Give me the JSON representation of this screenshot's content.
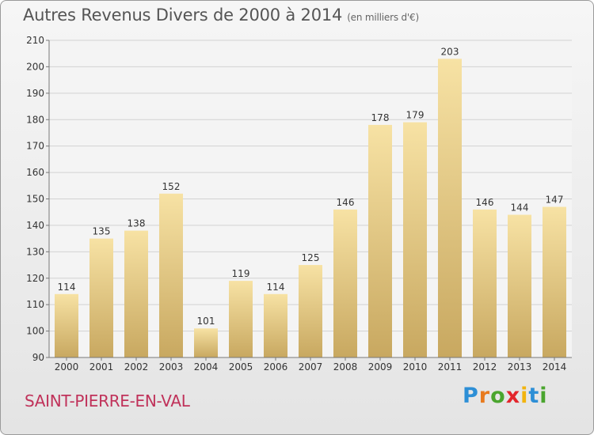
{
  "header": {
    "title": "Autres Revenus Divers de 2000 à 2014",
    "subtitle": "(en milliers d'€)"
  },
  "commune": "SAINT-PIERRE-EN-VAL",
  "logo": {
    "text": "Proxiti",
    "letter_colors": [
      "#2d8fd6",
      "#e87a1e",
      "#4aa52e",
      "#e3262c",
      "#f2b40f",
      "#2d8fd6",
      "#4aa52e"
    ]
  },
  "colors": {
    "bar_light": "#f7e2a4",
    "bar_dark": "#c8a860",
    "grid": "#d2d2d2",
    "axis_text": "#333333"
  },
  "chart_data": {
    "type": "bar",
    "title": "Autres Revenus Divers de 2000 à 2014",
    "subtitle": "(en milliers d'€)",
    "categories": [
      "2000",
      "2001",
      "2002",
      "2003",
      "2004",
      "2005",
      "2006",
      "2007",
      "2008",
      "2009",
      "2010",
      "2011",
      "2012",
      "2013",
      "2014"
    ],
    "values": [
      114,
      135,
      138,
      152,
      101,
      119,
      114,
      125,
      146,
      178,
      179,
      203,
      146,
      144,
      147
    ],
    "ylim": [
      90,
      210
    ],
    "yticks": [
      90,
      100,
      110,
      120,
      130,
      140,
      150,
      160,
      170,
      180,
      190,
      200,
      210
    ],
    "grid": true,
    "data_labels": true
  }
}
